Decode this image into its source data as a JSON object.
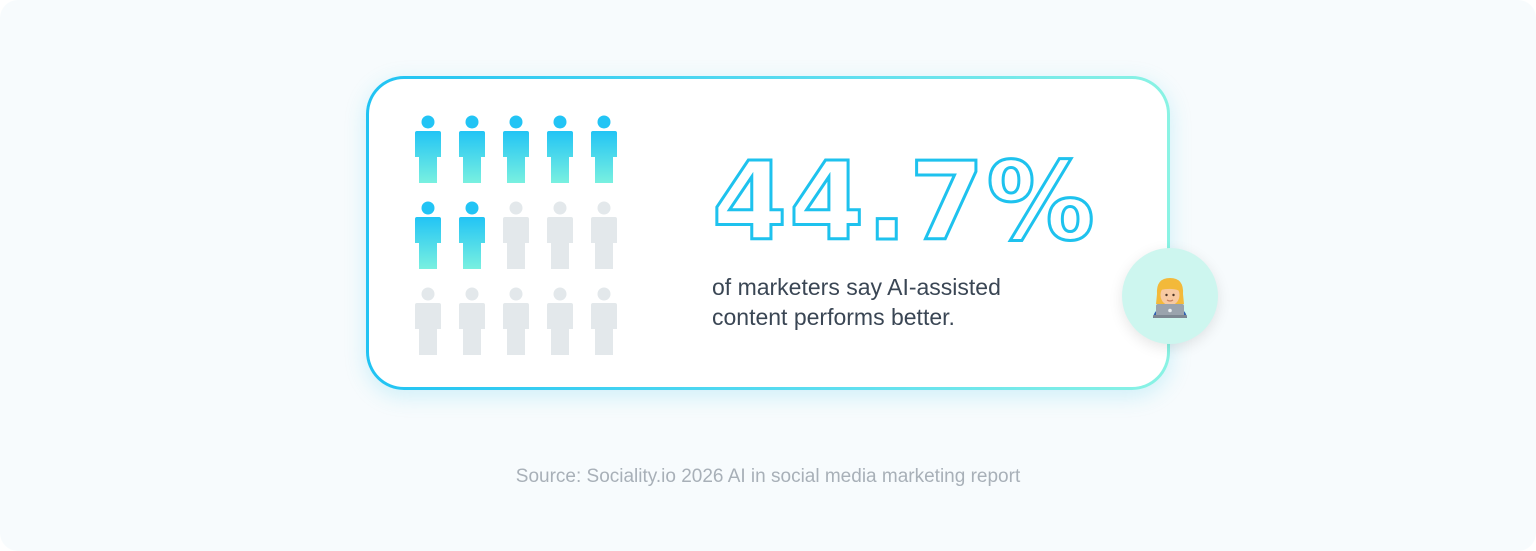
{
  "stat": {
    "value_text": "44.7%",
    "description_line1": "of marketers say AI-assisted",
    "description_line2": "content performs better."
  },
  "pictogram": {
    "total_icons": 15,
    "highlighted_icons": 7,
    "columns": 5,
    "icon": "person-icon",
    "highlight_gradient": [
      "#22c4f5",
      "#79f0e0"
    ],
    "inactive_color": "#e3e8eb"
  },
  "badge": {
    "icon": "marketer-with-laptop-icon"
  },
  "source": {
    "text": "Source: Sociality.io 2026 AI in social media marketing report"
  },
  "colors": {
    "accent": "#1ec2ee",
    "accent_secondary": "#8af3e4",
    "text": "#3a4654",
    "muted": "#a8b0b8"
  }
}
